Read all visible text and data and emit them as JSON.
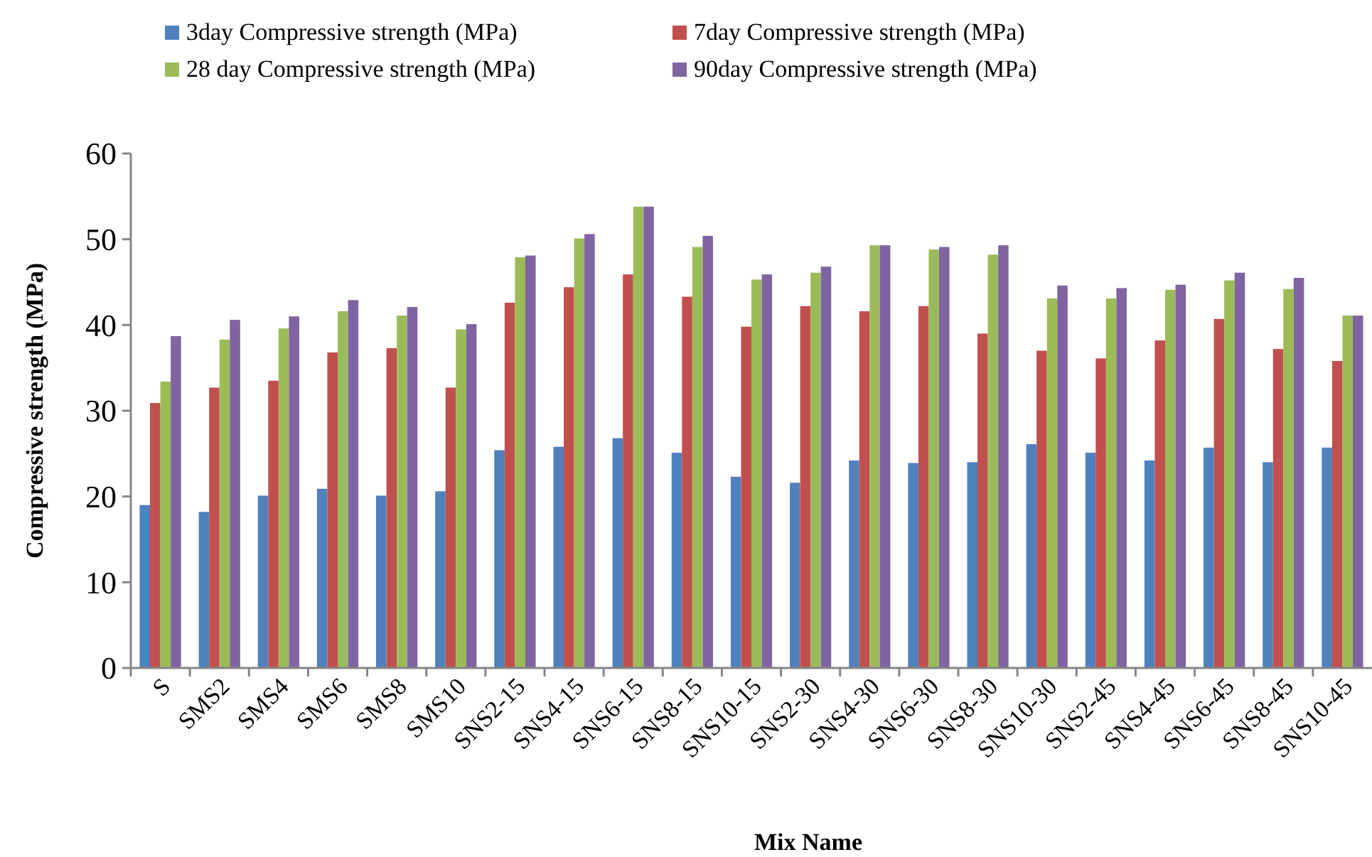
{
  "chart_data": {
    "type": "bar",
    "xlabel": "Mix Name",
    "ylabel": "Compressive strength (MPa)",
    "categories": [
      "S",
      "SMS2",
      "SMS4",
      "SMS6",
      "SMS8",
      "SMS10",
      "SNS2-15",
      "SNS4-15",
      "SNS6-15",
      "SNS8-15",
      "SNS10-15",
      "SNS2-30",
      "SNS4-30",
      "SNS6-30",
      "SNS8-30",
      "SNS10-30",
      "SNS2-45",
      "SNS4-45",
      "SNS6-45",
      "SNS8-45",
      "SNS10-45"
    ],
    "series": [
      {
        "name": "3day Compressive strength (MPa)",
        "color": "#4f81bd",
        "values": [
          19,
          18.2,
          20.1,
          20.9,
          20.1,
          20.6,
          25.4,
          25.8,
          26.8,
          25.1,
          22.3,
          21.6,
          24.2,
          23.9,
          24,
          26.1,
          25.1,
          24.2,
          25.7,
          24,
          25.7
        ]
      },
      {
        "name": "7day Compressive strength (MPa)",
        "color": "#c0504d",
        "values": [
          30.9,
          32.7,
          33.5,
          36.8,
          37.3,
          32.7,
          42.6,
          44.4,
          45.9,
          43.3,
          39.8,
          42.2,
          41.6,
          42.2,
          39,
          37,
          36.1,
          38.2,
          40.7,
          37.2,
          35.8
        ]
      },
      {
        "name": "28 day Compressive strength (MPa)",
        "color": "#9bbb59",
        "values": [
          33.4,
          38.3,
          39.6,
          41.6,
          41.1,
          39.5,
          47.9,
          50.1,
          53.8,
          49.1,
          45.3,
          46.1,
          49.3,
          48.8,
          48.2,
          43.1,
          43.1,
          44.1,
          45.2,
          44.2,
          41.1
        ]
      },
      {
        "name": "90day Compressive strength (MPa)",
        "color": "#8064a2",
        "values": [
          38.7,
          40.6,
          41,
          42.9,
          42.1,
          40.1,
          48.1,
          50.6,
          53.8,
          50.4,
          45.9,
          46.8,
          49.3,
          49.1,
          49.3,
          44.6,
          44.3,
          44.7,
          46.1,
          45.5,
          41.1
        ]
      }
    ],
    "ylim": [
      0,
      60
    ],
    "yticks": [
      0,
      10,
      20,
      30,
      40,
      50,
      60
    ],
    "grid": false,
    "legend": "top"
  }
}
